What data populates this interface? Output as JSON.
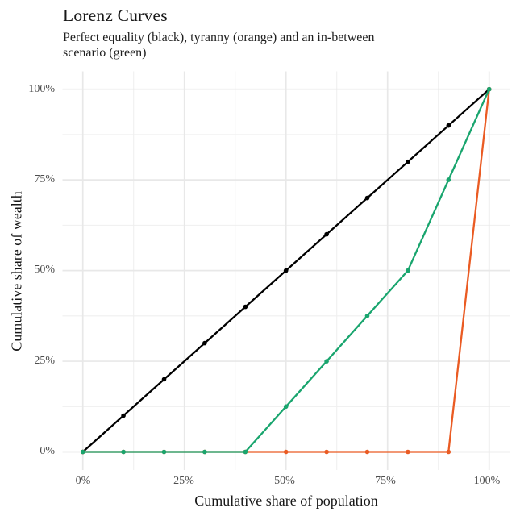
{
  "chart_data": {
    "type": "line",
    "title": "Lorenz Curves",
    "subtitle": "Perfect equality (black), tyranny (orange) and an in-between scenario (green)",
    "subtitle_lines": [
      "Perfect equality (black), tyranny (orange) and an in-between",
      "scenario (green)"
    ],
    "xlabel": "Cumulative share of population",
    "ylabel": "Cumulative share of wealth",
    "x": [
      0,
      10,
      20,
      30,
      40,
      50,
      60,
      70,
      80,
      90,
      100
    ],
    "series": [
      {
        "name": "perfect-equality",
        "color": "#000000",
        "values": [
          0,
          10,
          20,
          30,
          40,
          50,
          60,
          70,
          80,
          90,
          100
        ]
      },
      {
        "name": "tyranny",
        "color": "#EA5B23",
        "values": [
          0,
          0,
          0,
          0,
          0,
          0,
          0,
          0,
          0,
          0,
          100
        ]
      },
      {
        "name": "in-between",
        "color": "#19A56E",
        "values": [
          0,
          0,
          0,
          0,
          0,
          12.5,
          25,
          37.5,
          50,
          75,
          100
        ]
      }
    ],
    "xlim": [
      0,
      100
    ],
    "ylim": [
      0,
      100
    ],
    "x_tick_values": [
      0,
      25,
      50,
      75,
      100
    ],
    "y_tick_values": [
      0,
      25,
      50,
      75,
      100
    ],
    "x_tick_labels": [
      "0%",
      "25%",
      "50%",
      "75%",
      "100%"
    ],
    "y_tick_labels": [
      "0%",
      "25%",
      "50%",
      "75%",
      "100%"
    ],
    "minor_tick_values": [
      12.5,
      37.5,
      62.5,
      87.5
    ],
    "grid": "major+minor",
    "legend": "none",
    "markers": true,
    "style": {
      "background": "#ffffff",
      "grid_major_color": "#e8e8e8",
      "grid_minor_color": "#efefef",
      "axis_text_color": "#4d4d4d",
      "title_color": "#171717"
    }
  }
}
